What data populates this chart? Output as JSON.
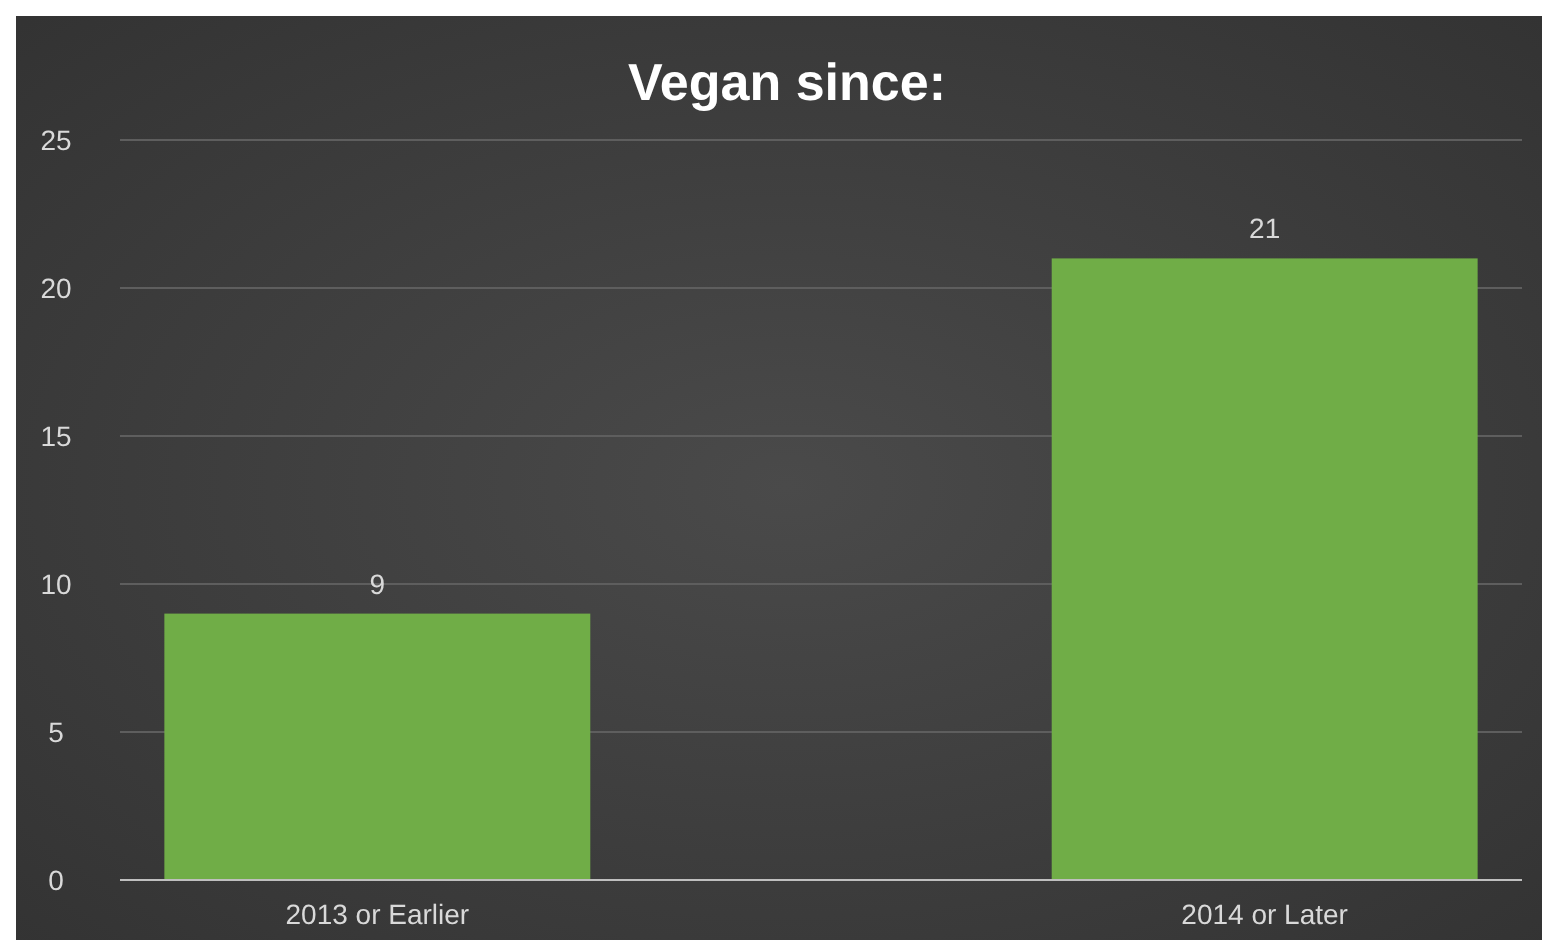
{
  "chart_data": {
    "type": "bar",
    "title": "Vegan since:",
    "categories": [
      "2013 or Earlier",
      "2014 or Later"
    ],
    "values": [
      9,
      21
    ],
    "color": "#70ad47",
    "ylim": [
      0,
      25
    ],
    "yticks": [
      0,
      5,
      10,
      15,
      20,
      25
    ],
    "grid": "y",
    "data_labels": true
  }
}
